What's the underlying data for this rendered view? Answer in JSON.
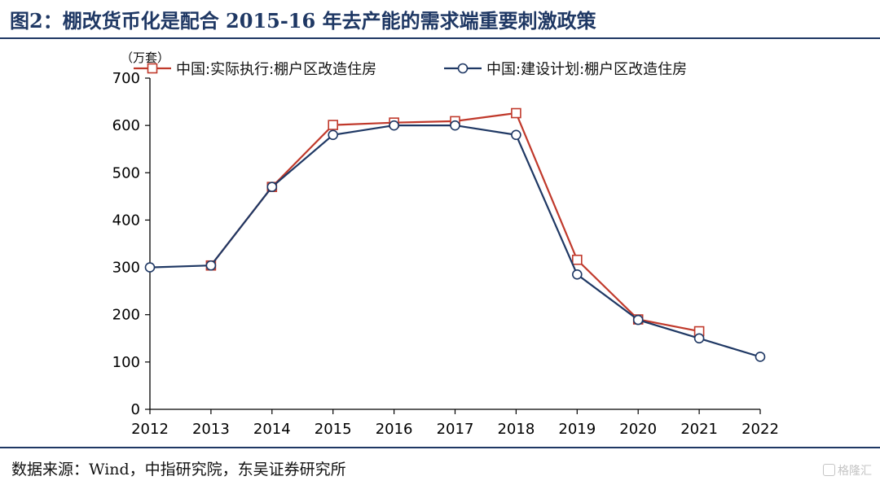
{
  "header": {
    "title": "图2：棚改货币化是配合 2015-16 年去产能的需求端重要刺激政策"
  },
  "footer": {
    "source": "数据来源：Wind，中指研究院，东吴证券研究所",
    "watermark": "格隆汇"
  },
  "colors": {
    "accent": "#1f3864",
    "series_actual": "#c0392b",
    "series_plan": "#1f3864"
  },
  "chart_data": {
    "type": "line",
    "unit_label": "（万套）",
    "x": [
      "2012",
      "2013",
      "2014",
      "2015",
      "2016",
      "2017",
      "2018",
      "2019",
      "2020",
      "2021",
      "2022"
    ],
    "yticks": [
      0,
      100,
      200,
      300,
      400,
      500,
      600,
      700
    ],
    "ylim": [
      0,
      700
    ],
    "legend_position": "top",
    "grid": false,
    "series": [
      {
        "name": "中国:实际执行:棚户区改造住房",
        "color": "#c0392b",
        "marker": "square",
        "values": [
          null,
          304,
          470,
          601,
          606,
          609,
          626,
          316,
          190,
          165,
          null
        ]
      },
      {
        "name": "中国:建设计划:棚户区改造住房",
        "color": "#1f3864",
        "marker": "circle",
        "values": [
          300,
          304,
          470,
          580,
          600,
          600,
          580,
          285,
          189,
          150,
          111
        ]
      }
    ]
  }
}
